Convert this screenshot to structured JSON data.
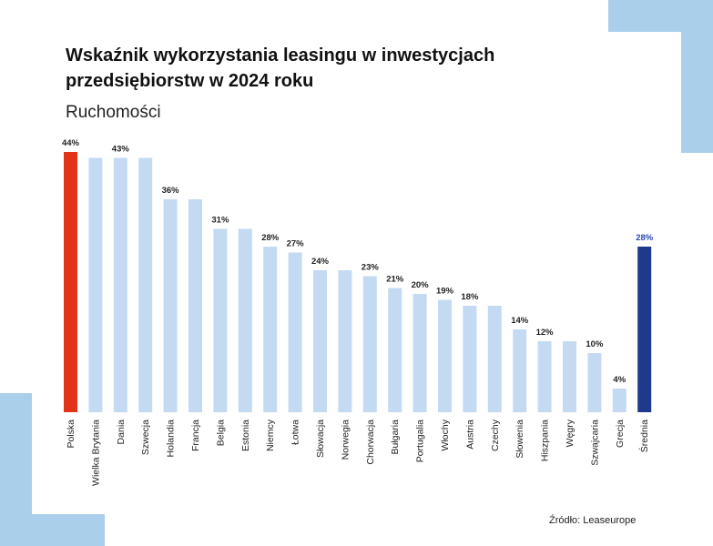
{
  "header": {
    "title": "Wskaźnik wykorzystania leasingu w inwestycjach przedsiębiorstw w 2024 roku",
    "subtitle": "Ruchomości"
  },
  "footer": {
    "source": "Źródło: Leaseurope"
  },
  "colors": {
    "highlight": "#e23418",
    "average": "#1f3a8c",
    "default": "#c4daf2",
    "decoration": "#aacfeb",
    "label": "#222222",
    "average_label": "#2a49b0"
  },
  "chart_data": {
    "type": "bar",
    "title": "Wskaźnik wykorzystania leasingu w inwestycjach przedsiębiorstw w 2024 roku",
    "subtitle": "Ruchomości",
    "unit": "%",
    "categories": [
      "Polska",
      "Wielka Brytania",
      "Dania",
      "Szwecja",
      "Holandia",
      "Francja",
      "Belgia",
      "Estonia",
      "Niemcy",
      "Łotwa",
      "Słowacja",
      "Norwegia",
      "Chorwacja",
      "Bułgaria",
      "Portugalia",
      "Włochy",
      "Austria",
      "Czechy",
      "Słowenia",
      "Hiszpania",
      "Węgry",
      "Szwajcaria",
      "Grecja",
      "Średnia"
    ],
    "values": [
      44,
      43,
      43,
      43,
      36,
      36,
      31,
      31,
      28,
      27,
      24,
      24,
      23,
      21,
      20,
      19,
      18,
      18,
      14,
      12,
      12,
      10,
      4,
      28
    ],
    "data_labels": [
      "44%",
      null,
      "43%",
      null,
      "36%",
      null,
      "31%",
      null,
      "28%",
      "27%",
      "24%",
      null,
      "23%",
      "21%",
      "20%",
      "19%",
      "18%",
      null,
      "14%",
      "12%",
      null,
      "10%",
      "4%",
      "28%"
    ],
    "highlight": "Polska",
    "average_category": "Średnia",
    "ylim": [
      0,
      44
    ],
    "grid": false,
    "legend": "none",
    "source": "Źródło: Leaseurope"
  }
}
